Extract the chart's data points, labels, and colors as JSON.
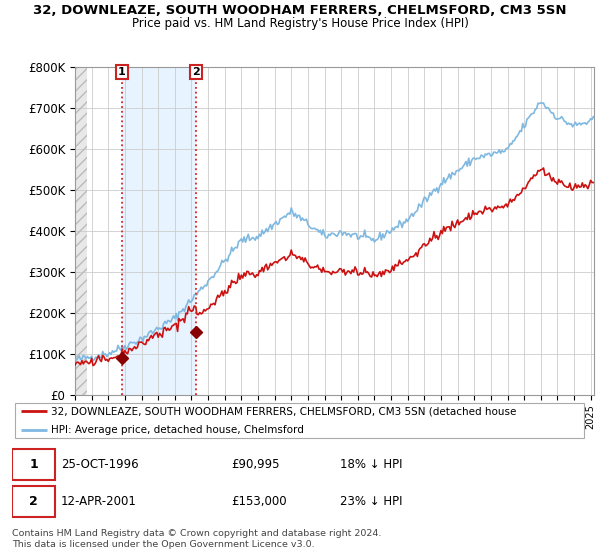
{
  "title": "32, DOWNLEAZE, SOUTH WOODHAM FERRERS, CHELMSFORD, CM3 5SN",
  "subtitle": "Price paid vs. HM Land Registry's House Price Index (HPI)",
  "ylabel_ticks": [
    "£0",
    "£100K",
    "£200K",
    "£300K",
    "£400K",
    "£500K",
    "£600K",
    "£700K",
    "£800K"
  ],
  "ytick_vals": [
    0,
    100000,
    200000,
    300000,
    400000,
    500000,
    600000,
    700000,
    800000
  ],
  "ylim": [
    0,
    800000
  ],
  "xlim_start": 1994.0,
  "xlim_end": 2025.2,
  "sale1_year": 1996.82,
  "sale1_price": 90995,
  "sale2_year": 2001.28,
  "sale2_price": 153000,
  "hpi_line_color": "#7fb8e0",
  "hpi_fill_color": "#ddeeff",
  "price_line_color": "#cc1111",
  "marker_color": "#880000",
  "vline_color": "#dd2222",
  "legend_label1": "32, DOWNLEAZE, SOUTH WOODHAM FERRERS, CHELMSFORD, CM3 5SN (detached house",
  "legend_label2": "HPI: Average price, detached house, Chelmsford",
  "table_row1": [
    "1",
    "25-OCT-1996",
    "£90,995",
    "18% ↓ HPI"
  ],
  "table_row2": [
    "2",
    "12-APR-2001",
    "£153,000",
    "23% ↓ HPI"
  ],
  "footnote": "Contains HM Land Registry data © Crown copyright and database right 2024.\nThis data is licensed under the Open Government Licence v3.0."
}
